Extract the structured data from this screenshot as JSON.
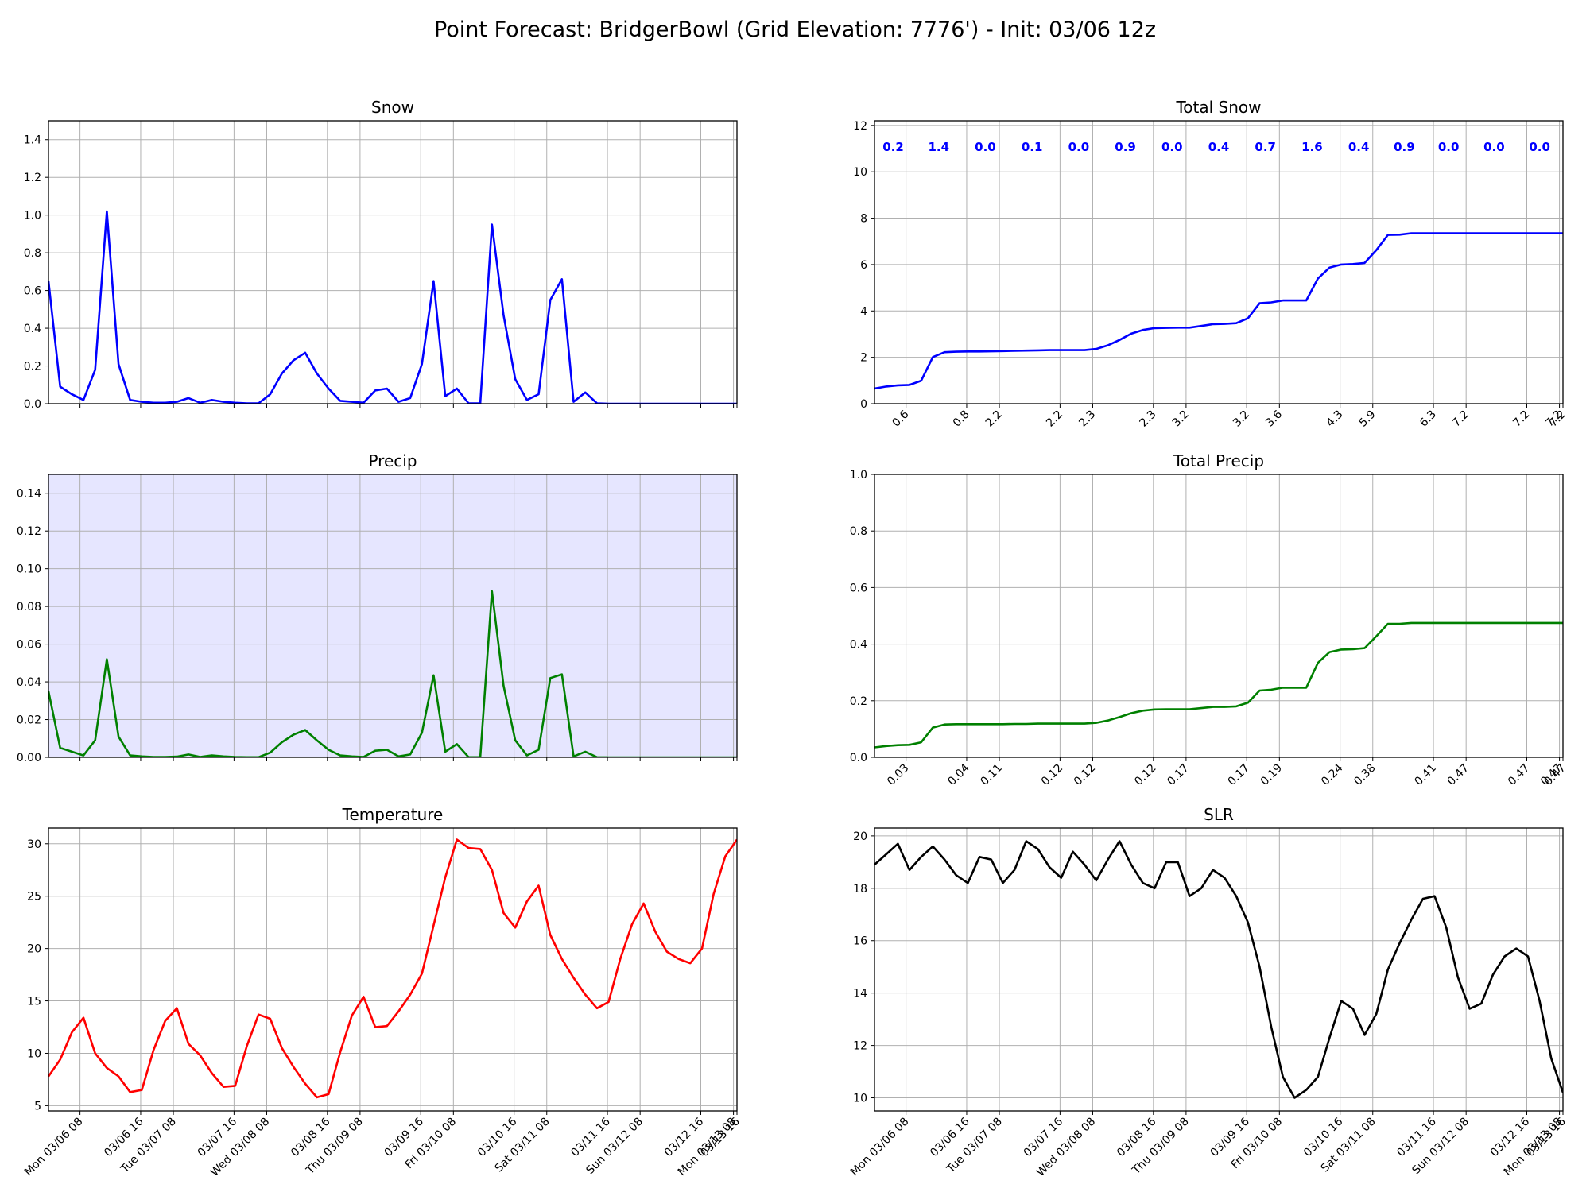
{
  "title": "Point Forecast: BridgerBowl (Grid Elevation: 7776') - Init: 03/06 12z",
  "time_ticks": [
    "Mon 03/06 08",
    "03/06 16",
    "Tue 03/07 08",
    "03/07 16",
    "Wed 03/08 08",
    "03/08 16",
    "Thu 03/09 08",
    "03/09 16",
    "Fri 03/10 08",
    "03/10 16",
    "Sat 03/11 08",
    "03/11 16",
    "Sun 03/12 08",
    "03/12 16",
    "Mon 03/13 08",
    "03/13 16"
  ],
  "chart_data": [
    {
      "id": "snow",
      "type": "line",
      "title": "Snow",
      "color": "#0000ff",
      "ylim": [
        0,
        1.5
      ],
      "yticks": [
        "0.0",
        "0.2",
        "0.4",
        "0.6",
        "0.8",
        "1.0",
        "1.2",
        "1.4"
      ],
      "x": [
        0,
        1,
        2,
        3,
        4,
        5,
        6,
        7,
        8,
        9,
        10,
        11,
        12,
        13,
        14,
        15,
        16,
        17,
        18,
        19,
        20,
        21,
        22,
        23,
        24,
        25,
        26,
        27,
        28,
        29,
        30,
        31,
        32,
        33,
        34,
        35,
        36,
        37,
        38,
        39,
        40,
        41,
        42,
        43,
        44,
        45,
        46,
        47,
        48,
        49,
        50,
        51,
        52,
        53,
        54,
        55,
        56,
        57,
        58,
        59
      ],
      "values": [
        0.65,
        0.09,
        0.05,
        0.02,
        0.18,
        1.02,
        0.21,
        0.02,
        0.01,
        0.005,
        0.005,
        0.01,
        0.03,
        0.005,
        0.02,
        0.01,
        0.005,
        0.002,
        0.002,
        0.05,
        0.16,
        0.23,
        0.27,
        0.16,
        0.08,
        0.015,
        0.01,
        0.005,
        0.07,
        0.08,
        0.01,
        0.03,
        0.21,
        0.65,
        0.04,
        0.08,
        0.002,
        0.002,
        0.95,
        0.47,
        0.13,
        0.02,
        0.05,
        0.55,
        0.66,
        0.01,
        0.06,
        0.002,
        0,
        0,
        0,
        0,
        0,
        0,
        0,
        0,
        0,
        0,
        0,
        0
      ]
    },
    {
      "id": "total_snow",
      "type": "line",
      "title": "Total Snow",
      "color": "#0000ff",
      "ylim": [
        0,
        12.2
      ],
      "yticks": [
        "0",
        "2",
        "4",
        "6",
        "8",
        "10",
        "12"
      ],
      "x": [
        0,
        1,
        2,
        3,
        4,
        5,
        6,
        7,
        8,
        9,
        10,
        11,
        12,
        13,
        14,
        15,
        16,
        17,
        18,
        19,
        20,
        21,
        22,
        23,
        24,
        25,
        26,
        27,
        28,
        29,
        30,
        31,
        32,
        33,
        34,
        35,
        36,
        37,
        38,
        39,
        40,
        41,
        42,
        43,
        44,
        45,
        46,
        47,
        48,
        49,
        50,
        51,
        52,
        53,
        54,
        55,
        56,
        57,
        58,
        59
      ],
      "values": [
        0.65,
        0.74,
        0.79,
        0.81,
        0.99,
        2.01,
        2.22,
        2.24,
        2.25,
        2.25,
        2.26,
        2.27,
        2.28,
        2.29,
        2.3,
        2.31,
        2.31,
        2.31,
        2.31,
        2.36,
        2.52,
        2.75,
        3.02,
        3.18,
        3.26,
        3.27,
        3.28,
        3.28,
        3.35,
        3.43,
        3.44,
        3.47,
        3.68,
        4.33,
        4.37,
        4.45,
        4.45,
        4.45,
        5.4,
        5.87,
        6.0,
        6.02,
        6.07,
        6.62,
        7.28,
        7.29,
        7.35,
        7.35,
        7.35,
        7.35,
        7.35,
        7.35,
        7.35,
        7.35,
        7.35,
        7.35,
        7.35,
        7.35,
        7.35,
        7.35
      ],
      "xtick_labels": [
        "0.6",
        "0.8",
        "2.2",
        "2.2",
        "2.3",
        "2.3",
        "3.2",
        "3.2",
        "3.6",
        "4.3",
        "5.9",
        "6.3",
        "7.2",
        "7.2",
        "7.2",
        "7.2"
      ],
      "annotations": [
        "0.2",
        "1.4",
        "0.0",
        "0.1",
        "0.0",
        "0.9",
        "0.0",
        "0.4",
        "0.7",
        "1.6",
        "0.4",
        "0.9",
        "0.0",
        "0.0",
        "0.0"
      ]
    },
    {
      "id": "precip",
      "type": "line",
      "title": "Precip",
      "color": "#008000",
      "background": "#e6e6ff",
      "ylim": [
        0,
        0.15
      ],
      "yticks": [
        "0.00",
        "0.02",
        "0.04",
        "0.06",
        "0.08",
        "0.10",
        "0.12",
        "0.14"
      ],
      "x": [
        0,
        1,
        2,
        3,
        4,
        5,
        6,
        7,
        8,
        9,
        10,
        11,
        12,
        13,
        14,
        15,
        16,
        17,
        18,
        19,
        20,
        21,
        22,
        23,
        24,
        25,
        26,
        27,
        28,
        29,
        30,
        31,
        32,
        33,
        34,
        35,
        36,
        37,
        38,
        39,
        40,
        41,
        42,
        43,
        44,
        45,
        46,
        47,
        48,
        49,
        50,
        51,
        52,
        53,
        54,
        55,
        56,
        57,
        58,
        59
      ],
      "values": [
        0.035,
        0.005,
        0.003,
        0.001,
        0.009,
        0.052,
        0.011,
        0.001,
        0.0005,
        0.0002,
        0.0002,
        0.0004,
        0.0015,
        0.0002,
        0.001,
        0.0005,
        0.0002,
        0.0001,
        0.0001,
        0.0025,
        0.008,
        0.012,
        0.0145,
        0.009,
        0.004,
        0.001,
        0.0005,
        0.0002,
        0.0035,
        0.004,
        0.0005,
        0.0015,
        0.013,
        0.0435,
        0.003,
        0.007,
        0.0001,
        0.0001,
        0.088,
        0.038,
        0.009,
        0.001,
        0.004,
        0.042,
        0.044,
        0.0005,
        0.003,
        0.0001,
        0,
        0,
        0,
        0,
        0,
        0,
        0,
        0,
        0,
        0,
        0,
        0
      ]
    },
    {
      "id": "total_precip",
      "type": "line",
      "title": "Total Precip",
      "color": "#008000",
      "ylim": [
        0,
        1.0
      ],
      "yticks": [
        "0.0",
        "0.2",
        "0.4",
        "0.6",
        "0.8",
        "1.0"
      ],
      "x": [
        0,
        1,
        2,
        3,
        4,
        5,
        6,
        7,
        8,
        9,
        10,
        11,
        12,
        13,
        14,
        15,
        16,
        17,
        18,
        19,
        20,
        21,
        22,
        23,
        24,
        25,
        26,
        27,
        28,
        29,
        30,
        31,
        32,
        33,
        34,
        35,
        36,
        37,
        38,
        39,
        40,
        41,
        42,
        43,
        44,
        45,
        46,
        47,
        48,
        49,
        50,
        51,
        52,
        53,
        54,
        55,
        56,
        57,
        58,
        59
      ],
      "values": [
        0.035,
        0.04,
        0.043,
        0.044,
        0.053,
        0.105,
        0.116,
        0.117,
        0.117,
        0.117,
        0.117,
        0.117,
        0.118,
        0.118,
        0.119,
        0.119,
        0.119,
        0.119,
        0.119,
        0.122,
        0.13,
        0.142,
        0.156,
        0.165,
        0.169,
        0.17,
        0.17,
        0.17,
        0.174,
        0.178,
        0.178,
        0.18,
        0.193,
        0.236,
        0.239,
        0.246,
        0.246,
        0.246,
        0.334,
        0.372,
        0.381,
        0.382,
        0.386,
        0.428,
        0.472,
        0.472,
        0.475,
        0.475,
        0.475,
        0.475,
        0.475,
        0.475,
        0.475,
        0.475,
        0.475,
        0.475,
        0.475,
        0.475,
        0.475,
        0.475
      ],
      "xtick_labels": [
        "0.03",
        "0.04",
        "0.11",
        "0.12",
        "0.12",
        "0.12",
        "0.17",
        "0.17",
        "0.19",
        "0.24",
        "0.38",
        "0.41",
        "0.47",
        "0.47",
        "0.47",
        "0.47"
      ]
    },
    {
      "id": "temperature",
      "type": "line",
      "title": "Temperature",
      "color": "#ff0000",
      "ylim": [
        4.5,
        31.5
      ],
      "yticks": [
        "5",
        "10",
        "15",
        "20",
        "25",
        "30"
      ],
      "x": [
        0,
        1,
        2,
        3,
        4,
        5,
        6,
        7,
        8,
        9,
        10,
        11,
        12,
        13,
        14,
        15,
        16,
        17,
        18,
        19,
        20,
        21,
        22,
        23,
        24,
        25,
        26,
        27,
        28,
        29,
        30,
        31,
        32,
        33,
        34,
        35,
        36,
        37,
        38,
        39,
        40,
        41,
        42,
        43,
        44,
        45,
        46,
        47,
        48,
        49,
        50,
        51,
        52,
        53,
        54,
        55,
        56,
        57,
        58,
        59
      ],
      "values": [
        7.8,
        9.4,
        12.0,
        13.4,
        10.0,
        8.6,
        7.8,
        6.3,
        6.5,
        10.3,
        13.1,
        14.3,
        10.9,
        9.8,
        8.1,
        6.8,
        6.9,
        10.7,
        13.7,
        13.3,
        10.5,
        8.7,
        7.1,
        5.8,
        6.1,
        10.1,
        13.6,
        15.4,
        12.5,
        12.6,
        14.0,
        15.6,
        17.6,
        22.2,
        26.8,
        30.4,
        29.6,
        29.5,
        27.5,
        23.4,
        22.0,
        24.5,
        26.0,
        21.3,
        19.0,
        17.2,
        15.6,
        14.3,
        14.9,
        19.0,
        22.3,
        24.3,
        21.6,
        19.7,
        19.0,
        18.6,
        20.0,
        25.2,
        28.8,
        30.4
      ]
    },
    {
      "id": "slr",
      "type": "line",
      "title": "SLR",
      "color": "#000000",
      "ylim": [
        9.5,
        20.3
      ],
      "yticks": [
        "10",
        "12",
        "14",
        "16",
        "18",
        "20"
      ],
      "x": [
        0,
        1,
        2,
        3,
        4,
        5,
        6,
        7,
        8,
        9,
        10,
        11,
        12,
        13,
        14,
        15,
        16,
        17,
        18,
        19,
        20,
        21,
        22,
        23,
        24,
        25,
        26,
        27,
        28,
        29,
        30,
        31,
        32,
        33,
        34,
        35,
        36,
        37,
        38,
        39,
        40,
        41,
        42,
        43,
        44,
        45,
        46,
        47,
        48,
        49,
        50,
        51,
        52,
        53,
        54,
        55,
        56,
        57,
        58,
        59
      ],
      "values": [
        18.9,
        19.3,
        19.7,
        18.7,
        19.2,
        19.6,
        19.1,
        18.5,
        18.2,
        19.2,
        19.1,
        18.2,
        18.7,
        19.8,
        19.5,
        18.8,
        18.4,
        19.4,
        18.9,
        18.3,
        19.1,
        19.8,
        18.9,
        18.2,
        18.0,
        19.0,
        19.0,
        17.7,
        18.0,
        18.7,
        18.4,
        17.7,
        16.7,
        15.0,
        12.7,
        10.8,
        10.0,
        10.3,
        10.8,
        12.3,
        13.7,
        13.4,
        12.4,
        13.2,
        14.9,
        15.9,
        16.8,
        17.6,
        17.7,
        16.5,
        14.6,
        13.4,
        13.6,
        14.7,
        15.4,
        15.7,
        15.4,
        13.7,
        11.5,
        10.2
      ]
    }
  ]
}
